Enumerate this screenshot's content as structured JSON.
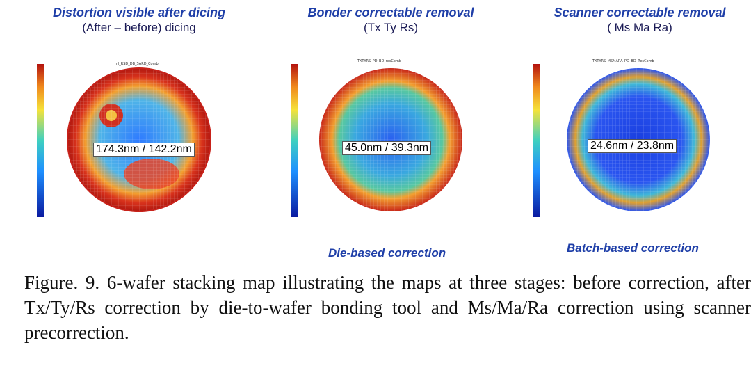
{
  "panels": [
    {
      "title": "Distortion visible after dicing",
      "subtitle": "(After – before) dicing",
      "value": "174.3nm / 142.2nm",
      "map_title": "ml_RSD_DB_SARD_Comb"
    },
    {
      "title": "Bonder correctable removal",
      "subtitle": "(Tx Ty Rs)",
      "value": "45.0nm / 39.3nm",
      "map_title": "TXTYRS_PD_BD_resComb"
    },
    {
      "title": "Scanner correctable removal",
      "subtitle": "( Ms Ma Ra)",
      "value": "24.6nm / 23.8nm",
      "map_title": "TXTYRS_MSMARA_PD_BD_ResComb"
    }
  ],
  "labels": {
    "die_based": "Die-based correction",
    "batch_based": "Batch-based correction"
  },
  "caption": "Figure. 9. 6-wafer stacking map illustrating the maps at three stages: before correction, after Tx/Ty/Rs correction by die-to-wafer bonding tool and Ms/Ma/Ra correction using scanner precorrection.",
  "colors": {
    "title_blue": "#1f3fa8",
    "low": "#1a2fd0",
    "high": "#c81e14"
  }
}
